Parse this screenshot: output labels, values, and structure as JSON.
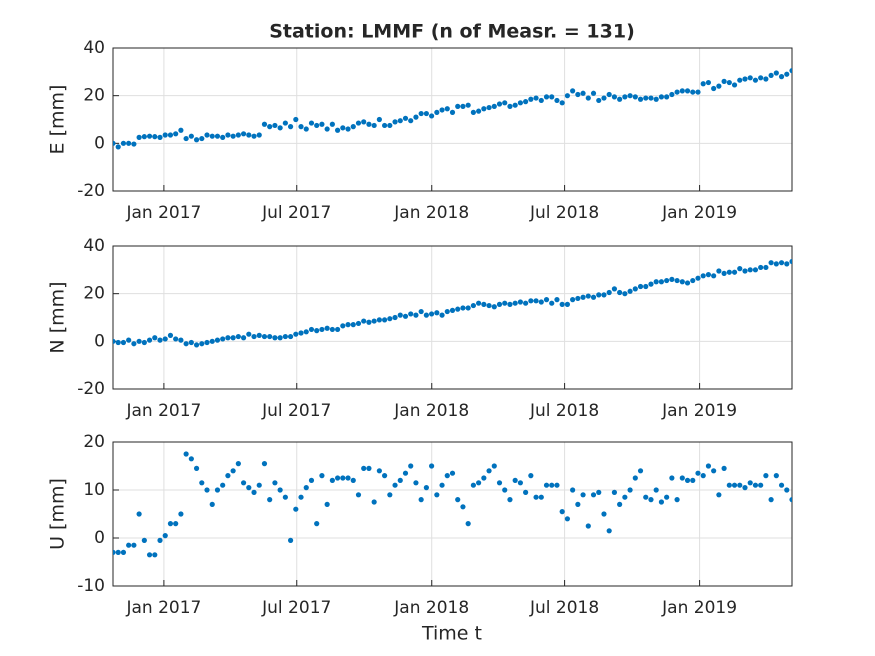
{
  "chart_data": {
    "type": "scatter",
    "title": "Station: LMMF (n of Measr. = 131)",
    "xlabel": "Time t",
    "color": "#0072bd",
    "grid": true,
    "xlim": [
      2016.81,
      2019.345
    ],
    "xticks": [
      {
        "value": 2017,
        "label": "Jan 2017"
      },
      {
        "value": 2017.496,
        "label": "Jul 2017"
      },
      {
        "value": 2018,
        "label": "Jan 2018"
      },
      {
        "value": 2018.496,
        "label": "Jul 2018"
      },
      {
        "value": 2019,
        "label": "Jan 2019"
      }
    ],
    "x": [
      2016.81,
      2016.8295,
      2016.849,
      2016.8685,
      2016.888,
      2016.9075,
      2016.927,
      2016.9465,
      2016.966,
      2016.9855,
      2017.005,
      2017.0245,
      2017.044,
      2017.0635,
      2017.083,
      2017.1025,
      2017.122,
      2017.1415,
      2017.161,
      2017.1805,
      2017.2,
      2017.2195,
      2017.239,
      2017.2585,
      2017.278,
      2017.2975,
      2017.317,
      2017.3365,
      2017.356,
      2017.3755,
      2017.395,
      2017.4145,
      2017.434,
      2017.4535,
      2017.473,
      2017.4925,
      2017.512,
      2017.5315,
      2017.551,
      2017.5705,
      2017.59,
      2017.6095,
      2017.629,
      2017.6485,
      2017.668,
      2017.6875,
      2017.707,
      2017.7265,
      2017.746,
      2017.7655,
      2017.785,
      2017.8045,
      2017.824,
      2017.8435,
      2017.863,
      2017.8825,
      2017.902,
      2017.9215,
      2017.941,
      2017.9605,
      2017.98,
      2017.9995,
      2018.019,
      2018.0385,
      2018.058,
      2018.0775,
      2018.097,
      2018.1165,
      2018.136,
      2018.1555,
      2018.175,
      2018.1945,
      2018.214,
      2018.2335,
      2018.253,
      2018.2725,
      2018.292,
      2018.3115,
      2018.331,
      2018.3505,
      2018.37,
      2018.3895,
      2018.409,
      2018.4285,
      2018.448,
      2018.4675,
      2018.487,
      2018.5065,
      2018.526,
      2018.5455,
      2018.565,
      2018.5845,
      2018.604,
      2018.6235,
      2018.643,
      2018.6625,
      2018.682,
      2018.7015,
      2018.721,
      2018.7405,
      2018.76,
      2018.7795,
      2018.799,
      2018.8185,
      2018.838,
      2018.8575,
      2018.877,
      2018.8965,
      2018.916,
      2018.9355,
      2018.955,
      2018.9745,
      2018.994,
      2019.0135,
      2019.033,
      2019.0525,
      2019.072,
      2019.0915,
      2019.111,
      2019.1305,
      2019.15,
      2019.1695,
      2019.189,
      2019.2085,
      2019.228,
      2019.2475,
      2019.267,
      2019.2865,
      2019.306,
      2019.3255,
      2019.345
    ],
    "panels": [
      {
        "ylabel": "E [mm]",
        "ylim": [
          -20,
          40
        ],
        "yticks": [
          -20,
          0,
          20,
          40
        ],
        "values": [
          0,
          -1.5,
          0,
          0,
          -0.3,
          2.5,
          2.8,
          3,
          2.8,
          2.5,
          3.5,
          3.5,
          4,
          5.5,
          2,
          3,
          1.5,
          2,
          3.5,
          3,
          3,
          2.5,
          3.5,
          3,
          3.5,
          4,
          3.5,
          3,
          3.5,
          8,
          7,
          7.5,
          6.5,
          8.5,
          7,
          10,
          7,
          6,
          8.5,
          7.5,
          8,
          6,
          8,
          5.5,
          6.5,
          6,
          7,
          8.5,
          9,
          8,
          7.5,
          10,
          7.5,
          7.5,
          9,
          9.5,
          10.5,
          9.5,
          11,
          12.5,
          12.5,
          11.5,
          13,
          14,
          14.5,
          13,
          15.5,
          15.5,
          16,
          13,
          13.5,
          14.5,
          15,
          15.5,
          16.5,
          17,
          15.5,
          16,
          17,
          17.5,
          18.5,
          19,
          18,
          19.5,
          19.5,
          18,
          17,
          20,
          22,
          20.5,
          21,
          19,
          21,
          18,
          19,
          20.5,
          19.5,
          18.5,
          19.5,
          20,
          19.5,
          18.5,
          19,
          19,
          18.5,
          19.5,
          19.5,
          20.5,
          21.5,
          22,
          22,
          21.5,
          21.5,
          25,
          25.5,
          23,
          24,
          26,
          25.5,
          24.5,
          26.5,
          27,
          27.5,
          26.5,
          27.5,
          27,
          28.5,
          29.5,
          28,
          29,
          30.5
        ]
      },
      {
        "ylabel": "N [mm]",
        "ylim": [
          -20,
          40
        ],
        "yticks": [
          -20,
          0,
          20,
          40
        ],
        "values": [
          0,
          -0.5,
          -0.5,
          0.5,
          -1,
          0,
          -0.5,
          0.5,
          1.5,
          0.5,
          1,
          2.5,
          1,
          0.5,
          -1,
          -0.5,
          -1.5,
          -1,
          -0.5,
          0,
          0.5,
          1,
          1.5,
          1.5,
          2,
          1.5,
          3,
          2,
          2.5,
          2,
          2,
          1.5,
          1.5,
          2,
          2,
          3,
          3.5,
          4,
          5,
          4.5,
          5,
          5.5,
          5,
          5,
          6.5,
          7,
          7,
          7.5,
          8.5,
          8,
          8.5,
          9,
          9,
          9.5,
          10,
          11,
          10.5,
          11.5,
          11,
          12.5,
          11,
          11.5,
          12,
          11,
          12.5,
          13,
          13.5,
          14,
          14,
          15,
          16,
          15.5,
          15,
          14.5,
          15.5,
          16,
          15.5,
          16,
          16.5,
          16,
          17,
          17,
          16.5,
          17.5,
          16,
          17.5,
          15.5,
          15.5,
          17.5,
          18,
          18.5,
          19,
          18.5,
          19.5,
          19.5,
          20.5,
          22,
          20.5,
          20,
          21,
          22,
          23,
          23,
          24,
          25,
          25,
          25.5,
          26,
          25.5,
          25,
          24.5,
          25.5,
          26.5,
          27.5,
          28,
          27.5,
          29.5,
          28.5,
          29,
          29,
          30.5,
          29.5,
          30,
          30,
          31,
          31,
          33,
          32.5,
          33,
          32.5,
          33.5
        ]
      },
      {
        "ylabel": "U [mm]",
        "ylim": [
          -10,
          20
        ],
        "yticks": [
          -10,
          0,
          10,
          20
        ],
        "values": [
          -3,
          -3,
          -3,
          -1.5,
          -1.5,
          5,
          -0.5,
          -3.5,
          -3.5,
          -0.5,
          0.5,
          3,
          3,
          5,
          17.5,
          16.5,
          14.5,
          11.5,
          10,
          7,
          10,
          11,
          13,
          14,
          15.5,
          11.5,
          10.5,
          9.5,
          11,
          15.5,
          8,
          11.5,
          10,
          8.5,
          -0.5,
          6,
          8.5,
          10.5,
          12,
          3,
          13,
          7,
          12,
          12.5,
          12.5,
          12.5,
          12,
          9,
          14.5,
          14.5,
          7.5,
          14,
          13,
          9,
          11,
          12,
          13.5,
          15,
          11.5,
          8,
          10.5,
          15,
          9,
          11,
          13,
          13.5,
          8,
          6.5,
          3,
          11,
          11.5,
          12.5,
          14,
          15,
          11.5,
          10,
          8,
          12,
          11.5,
          9.5,
          13,
          8.5,
          8.5,
          11,
          11,
          11,
          5.5,
          4,
          10,
          7,
          9,
          2.5,
          9,
          9.5,
          5,
          1.5,
          9.5,
          7,
          8.5,
          10,
          12.5,
          14,
          8.5,
          8,
          10,
          7.5,
          8.5,
          12.5,
          8,
          12.5,
          12,
          12,
          13.5,
          13,
          15,
          14,
          9,
          14.5,
          11,
          11,
          11,
          10.5,
          11.5,
          11,
          11,
          13,
          8,
          13,
          11,
          10,
          8
        ]
      }
    ]
  }
}
